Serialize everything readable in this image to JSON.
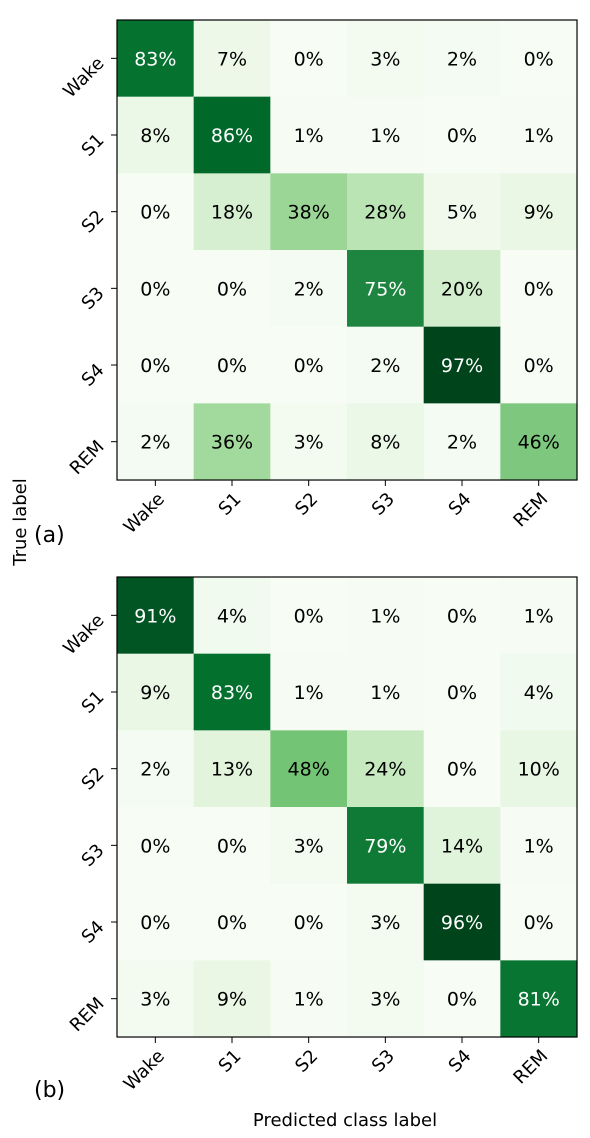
{
  "chart_data": [
    {
      "type": "heatmap",
      "panel_label": "(a)",
      "x_categories": [
        "Wake",
        "S1",
        "S2",
        "S3",
        "S4",
        "REM"
      ],
      "y_categories": [
        "Wake",
        "S1",
        "S2",
        "S3",
        "S4",
        "REM"
      ],
      "value_suffix": "%",
      "colormap": "Greens",
      "values": [
        [
          83,
          7,
          0,
          3,
          2,
          0
        ],
        [
          8,
          86,
          1,
          1,
          0,
          1
        ],
        [
          0,
          18,
          38,
          28,
          5,
          9
        ],
        [
          0,
          0,
          2,
          75,
          20,
          0
        ],
        [
          0,
          0,
          0,
          2,
          97,
          0
        ],
        [
          2,
          36,
          3,
          8,
          2,
          46
        ]
      ]
    },
    {
      "type": "heatmap",
      "panel_label": "(b)",
      "x_categories": [
        "Wake",
        "S1",
        "S2",
        "S3",
        "S4",
        "REM"
      ],
      "y_categories": [
        "Wake",
        "S1",
        "S2",
        "S3",
        "S4",
        "REM"
      ],
      "value_suffix": "%",
      "colormap": "Greens",
      "values": [
        [
          91,
          4,
          0,
          1,
          0,
          1
        ],
        [
          9,
          83,
          1,
          1,
          0,
          4
        ],
        [
          2,
          13,
          48,
          24,
          0,
          10
        ],
        [
          0,
          0,
          3,
          79,
          14,
          1
        ],
        [
          0,
          0,
          0,
          3,
          96,
          0
        ],
        [
          3,
          9,
          1,
          3,
          0,
          81
        ]
      ]
    }
  ],
  "ylabel": "True label",
  "xlabel": "Predicted class label"
}
